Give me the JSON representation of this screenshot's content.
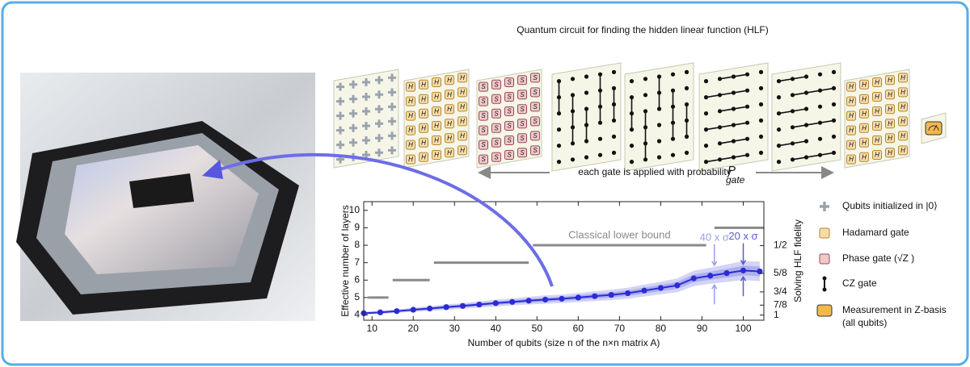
{
  "diagram": {
    "title": "Quantum circuit for finding the hidden linear function (HLF)",
    "probability_text": "each gate is applied with probability",
    "probability_symbol": "P",
    "probability_subscript": "gate"
  },
  "legend": [
    "Qubits initialized in |0⟩",
    "Hadamard gate",
    "Phase gate (√Z )",
    "CZ gate",
    "Measurement in Z-basis",
    "(all qubits)"
  ],
  "chart_data": {
    "type": "line",
    "xlabel": "Number of qubits (size n of the n×n matrix A)",
    "ylabel": "Effective number of layers",
    "y2label": "Solving HLF fidelity",
    "x": [
      8,
      12,
      16,
      20,
      24,
      28,
      32,
      36,
      40,
      44,
      48,
      52,
      56,
      60,
      64,
      68,
      72,
      76,
      80,
      84,
      88,
      92,
      96,
      100,
      104
    ],
    "values": [
      4.1,
      4.15,
      4.22,
      4.3,
      4.37,
      4.45,
      4.52,
      4.6,
      4.68,
      4.75,
      4.82,
      4.88,
      4.93,
      5.0,
      5.08,
      5.15,
      5.25,
      5.4,
      5.55,
      5.7,
      6.1,
      6.25,
      6.4,
      6.55,
      6.5
    ],
    "color": "#2b2bd6",
    "bands": [
      {
        "label": "40 x σ",
        "color": "#d3d4f6",
        "at_x": 93,
        "values": [
          0.08,
          0.1,
          0.1,
          0.12,
          0.14,
          0.16,
          0.16,
          0.18,
          0.2,
          0.2,
          0.22,
          0.24,
          0.24,
          0.26,
          0.28,
          0.3,
          0.32,
          0.34,
          0.36,
          0.4,
          0.44,
          0.46,
          0.5,
          0.54,
          0.56
        ]
      },
      {
        "label": "20 x σ",
        "color": "#adafee",
        "at_x": 100,
        "values": [
          0.04,
          0.05,
          0.05,
          0.06,
          0.07,
          0.08,
          0.08,
          0.09,
          0.1,
          0.1,
          0.11,
          0.12,
          0.12,
          0.13,
          0.14,
          0.15,
          0.16,
          0.17,
          0.18,
          0.2,
          0.22,
          0.23,
          0.25,
          0.27,
          0.28
        ]
      }
    ],
    "lower_bound": {
      "label": "Classical lower bound",
      "color": "#8a8a8a",
      "segments": [
        {
          "x": [
            9,
            14
          ],
          "y": 5
        },
        {
          "x": [
            15,
            24
          ],
          "y": 6
        },
        {
          "x": [
            25,
            48
          ],
          "y": 7
        },
        {
          "x": [
            49,
            91
          ],
          "y": 8
        },
        {
          "x": [
            93,
            105
          ],
          "y": 9
        }
      ]
    },
    "xlim": [
      8,
      105
    ],
    "xticks": [
      10,
      20,
      30,
      40,
      50,
      60,
      70,
      80,
      90,
      100
    ],
    "ylim": [
      3.7,
      10.5
    ],
    "yticks": [
      4,
      5,
      6,
      7,
      8,
      9,
      10
    ],
    "y2lim": [
      1.08,
      0.38
    ],
    "y2scale": "reciprocal",
    "y2ticks": [
      {
        "value": 0.5,
        "label": "1/2"
      },
      {
        "value": 0.625,
        "label": "5/8"
      },
      {
        "value": 0.75,
        "label": "3/4"
      },
      {
        "value": 0.875,
        "label": "7/8"
      },
      1
    ]
  }
}
